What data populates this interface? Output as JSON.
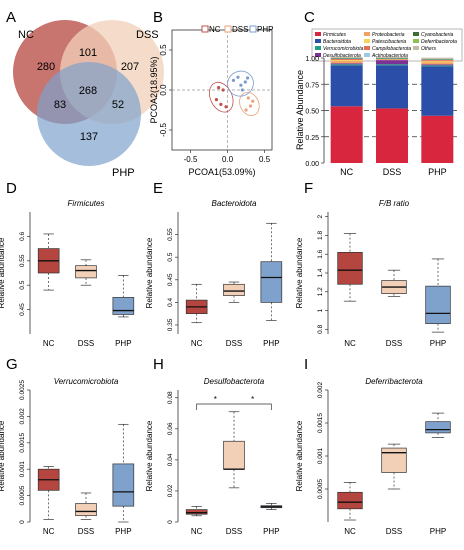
{
  "panels": {
    "A": {
      "letter": "A",
      "chart_data": {
        "type": "venn",
        "sets": [
          {
            "name": "NC",
            "color": "#b5453f"
          },
          {
            "name": "DSS",
            "color": "#f2d0b8"
          },
          {
            "name": "PHP",
            "color": "#7fa2cc"
          }
        ],
        "regions": {
          "NC_only": "280",
          "DSS_only": "207",
          "PHP_only": "137",
          "NC_DSS": "101",
          "NC_PHP": "83",
          "DSS_PHP": "52",
          "all": "268"
        }
      }
    },
    "B": {
      "letter": "B",
      "chart_data": {
        "type": "scatter",
        "xlabel": "PCOA1(53.09%)",
        "ylabel": "PCOA2(18.95%)",
        "xlim": [
          -0.75,
          0.6
        ],
        "ylim": [
          -0.75,
          0.75
        ],
        "xticks": [
          "-0.5",
          "0.0",
          "0.5"
        ],
        "yticks": [
          "-0.5",
          "0.0",
          "0.5"
        ],
        "legend_position": "top",
        "series": [
          {
            "name": "NC",
            "color": "#c0504d",
            "points": [
              [
                -0.15,
                -0.12
              ],
              [
                -0.06,
                0.0
              ],
              [
                -0.09,
                -0.18
              ],
              [
                -0.02,
                -0.21
              ],
              [
                -0.12,
                0.03
              ]
            ]
          },
          {
            "name": "DSS",
            "color": "#e9a27c",
            "points": [
              [
                0.28,
                -0.1
              ],
              [
                0.31,
                -0.2
              ],
              [
                0.25,
                -0.25
              ],
              [
                0.34,
                -0.14
              ]
            ]
          },
          {
            "name": "PHP",
            "color": "#7b9ccc",
            "points": [
              [
                0.08,
                0.12
              ],
              [
                0.18,
                0.06
              ],
              [
                0.14,
                0.16
              ],
              [
                0.24,
                0.1
              ],
              [
                0.2,
                0.0
              ],
              [
                0.27,
                0.15
              ]
            ]
          }
        ]
      }
    },
    "C": {
      "letter": "C",
      "chart_data": {
        "type": "bar",
        "stacked": true,
        "ylabel": "Relative Abundance",
        "ylim": [
          0,
          1
        ],
        "yticks": [
          "0.00",
          "0.25",
          "0.50",
          "0.75",
          "1.00"
        ],
        "categories": [
          "NC",
          "DSS",
          "PHP"
        ],
        "legend_position": "top",
        "series": [
          {
            "name": "Firmicutes",
            "color": "#d7263d",
            "values": [
              0.54,
              0.52,
              0.45
            ]
          },
          {
            "name": "Bacteroidota",
            "color": "#2b4fa8",
            "values": [
              0.39,
              0.41,
              0.47
            ]
          },
          {
            "name": "Verrucomicrobiota",
            "color": "#1f9e89",
            "values": [
              0.01,
              0.01,
              0.01
            ]
          },
          {
            "name": "Desulfobacterota",
            "color": "#7b3294",
            "values": [
              0.01,
              0.04,
              0.01
            ]
          },
          {
            "name": "Proteobacteria",
            "color": "#f4a261",
            "values": [
              0.02,
              0.01,
              0.02
            ]
          },
          {
            "name": "Patescibacteria",
            "color": "#f6d55c",
            "values": [
              0.01,
              0.0,
              0.01
            ]
          },
          {
            "name": "Campilobacterota",
            "color": "#e76f51",
            "values": [
              0.01,
              0.0,
              0.01
            ]
          },
          {
            "name": "Actinobacteriota",
            "color": "#9ecae1",
            "values": [
              0.005,
              0.005,
              0.005
            ]
          },
          {
            "name": "Cyanobacteria",
            "color": "#3c6e3c",
            "values": [
              0.005,
              0.005,
              0.005
            ]
          },
          {
            "name": "Deferribacterota",
            "color": "#8fbf4d",
            "values": [
              0.002,
              0.001,
              0.002
            ]
          },
          {
            "name": "Others",
            "color": "#c2b9a6",
            "values": [
              0.008,
              0.009,
              0.011
            ]
          }
        ]
      }
    },
    "D": {
      "letter": "D",
      "chart_data": {
        "type": "boxplot",
        "title": "Firmicutes",
        "ylabel": "Relative abundance",
        "ylim": [
          0.4,
          0.65
        ],
        "yticks": [
          "0.45",
          "0.5",
          "0.55",
          "0.6"
        ],
        "categories": [
          "NC",
          "DSS",
          "PHP"
        ],
        "boxes": [
          {
            "min": 0.49,
            "q1": 0.525,
            "median": 0.55,
            "q3": 0.575,
            "max": 0.605,
            "color": "#b5453f"
          },
          {
            "min": 0.5,
            "q1": 0.515,
            "median": 0.53,
            "q3": 0.54,
            "max": 0.552,
            "color": "#f2d0b8"
          },
          {
            "min": 0.435,
            "q1": 0.44,
            "median": 0.448,
            "q3": 0.475,
            "max": 0.52,
            "color": "#7fa2cc"
          }
        ]
      }
    },
    "E": {
      "letter": "E",
      "chart_data": {
        "type": "boxplot",
        "title": "Bacteroidota",
        "ylabel": "Relative abundance",
        "ylim": [
          0.33,
          0.6
        ],
        "yticks": [
          "0.35",
          "0.4",
          "0.45",
          "0.5",
          "0.55"
        ],
        "categories": [
          "NC",
          "DSS",
          "PHP"
        ],
        "boxes": [
          {
            "min": 0.355,
            "q1": 0.375,
            "median": 0.39,
            "q3": 0.405,
            "max": 0.44,
            "color": "#b5453f"
          },
          {
            "min": 0.4,
            "q1": 0.415,
            "median": 0.425,
            "q3": 0.44,
            "max": 0.445,
            "color": "#f2d0b8"
          },
          {
            "min": 0.36,
            "q1": 0.4,
            "median": 0.455,
            "q3": 0.49,
            "max": 0.575,
            "color": "#7fa2cc"
          }
        ]
      }
    },
    "F": {
      "letter": "F",
      "chart_data": {
        "type": "boxplot",
        "title": "F/B ratio",
        "ylabel": "Relative abundance",
        "ylim": [
          0.75,
          2.05
        ],
        "yticks": [
          "0.8",
          "1",
          "1.2",
          "1.4",
          "1.6",
          "1.8",
          "2"
        ],
        "categories": [
          "NC",
          "DSS",
          "PHP"
        ],
        "boxes": [
          {
            "min": 1.1,
            "q1": 1.28,
            "median": 1.43,
            "q3": 1.62,
            "max": 1.82,
            "color": "#b5453f"
          },
          {
            "min": 1.15,
            "q1": 1.18,
            "median": 1.25,
            "q3": 1.32,
            "max": 1.43,
            "color": "#f2d0b8"
          },
          {
            "min": 0.77,
            "q1": 0.86,
            "median": 0.97,
            "q3": 1.26,
            "max": 1.55,
            "color": "#7fa2cc"
          }
        ]
      }
    },
    "G": {
      "letter": "G",
      "chart_data": {
        "type": "boxplot",
        "title": "Verrucomicrobiota",
        "ylabel": "Relative abundance",
        "ylim": [
          0,
          0.0025
        ],
        "yticks": [
          "0",
          "0.0005",
          "0.001",
          "0.0015",
          "0.002",
          "0.0025"
        ],
        "categories": [
          "NC",
          "DSS",
          "PHP"
        ],
        "boxes": [
          {
            "min": 5e-05,
            "q1": 0.0006,
            "median": 0.0008,
            "q3": 0.001,
            "max": 0.00105,
            "color": "#b5453f"
          },
          {
            "min": 5e-05,
            "q1": 0.00012,
            "median": 0.0002,
            "q3": 0.00035,
            "max": 0.00055,
            "color": "#f2d0b8"
          },
          {
            "min": 0.0,
            "q1": 0.0003,
            "median": 0.00057,
            "q3": 0.0011,
            "max": 0.00185,
            "color": "#7fa2cc"
          }
        ]
      }
    },
    "H": {
      "letter": "H",
      "chart_data": {
        "type": "boxplot",
        "title": "Desulfobacterota",
        "ylabel": "Relative abundance",
        "ylim": [
          0,
          0.085
        ],
        "yticks": [
          "0",
          "0.02",
          "0.04",
          "0.06",
          "0.08"
        ],
        "categories": [
          "NC",
          "DSS",
          "PHP"
        ],
        "annotations": [
          "*",
          "*"
        ],
        "boxes": [
          {
            "min": 0.004,
            "q1": 0.005,
            "median": 0.006,
            "q3": 0.008,
            "max": 0.01,
            "color": "#b5453f"
          },
          {
            "min": 0.022,
            "q1": 0.034,
            "median": 0.034,
            "q3": 0.052,
            "max": 0.071,
            "color": "#f2d0b8"
          },
          {
            "min": 0.008,
            "q1": 0.0092,
            "median": 0.0098,
            "q3": 0.0105,
            "max": 0.012,
            "color": "#7fa2cc"
          }
        ]
      }
    },
    "I": {
      "letter": "I",
      "chart_data": {
        "type": "boxplot",
        "title": "Deferribacterota",
        "ylabel": "Relative abundance",
        "ylim": [
          0,
          0.002
        ],
        "yticks": [
          "0.0005",
          "0.001",
          "0.0015",
          "0.002"
        ],
        "categories": [
          "NC",
          "DSS",
          "PHP"
        ],
        "boxes": [
          {
            "min": 3e-05,
            "q1": 0.0002,
            "median": 0.0003,
            "q3": 0.00045,
            "max": 0.0006,
            "color": "#b5453f"
          },
          {
            "min": 0.0005,
            "q1": 0.00075,
            "median": 0.00105,
            "q3": 0.00112,
            "max": 0.00118,
            "color": "#f2d0b8"
          },
          {
            "min": 0.00128,
            "q1": 0.00135,
            "median": 0.0014,
            "q3": 0.00152,
            "max": 0.00165,
            "color": "#7fa2cc"
          }
        ]
      }
    }
  }
}
